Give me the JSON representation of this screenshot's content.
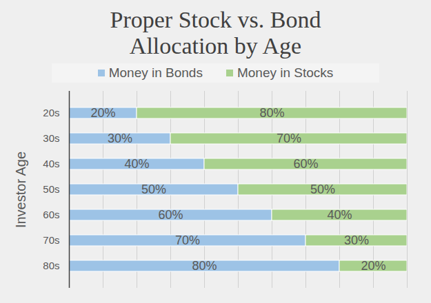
{
  "chart_data": {
    "type": "bar",
    "title": "Proper Stock vs. Bond Allocation by Age",
    "ylabel": "Investor Age",
    "categories": [
      "20s",
      "30s",
      "40s",
      "50s",
      "60s",
      "70s",
      "80s"
    ],
    "series": [
      {
        "name": "Money in Bonds",
        "color": "#9dc3e6",
        "values": [
          20,
          30,
          40,
          50,
          60,
          70,
          80
        ],
        "value_labels": [
          "20%",
          "30%",
          "40%",
          "50%",
          "60%",
          "70%",
          "80%"
        ]
      },
      {
        "name": "Money in Stocks",
        "color": "#a9d18e",
        "values": [
          80,
          70,
          60,
          50,
          40,
          30,
          20
        ],
        "value_labels": [
          "80%",
          "70%",
          "60%",
          "50%",
          "40%",
          "30%",
          "20%"
        ]
      }
    ],
    "orientation": "horizontal",
    "stacked": true,
    "data_labels": true,
    "xlim": [
      0,
      100
    ],
    "xticks": [
      0,
      10,
      20,
      30,
      40,
      50,
      60,
      70,
      80,
      90,
      100
    ],
    "grid": true,
    "tick_labels": "y",
    "legend": "top"
  }
}
